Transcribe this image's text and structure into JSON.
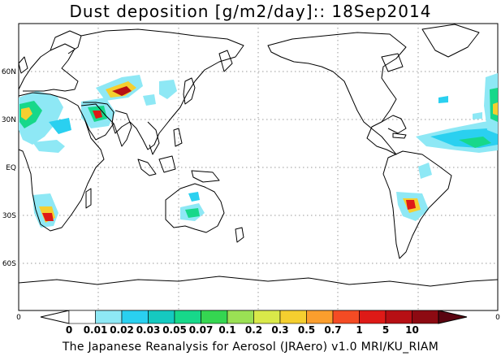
{
  "title": "Dust deposition [g/m2/day]:: 18Sep2014",
  "map": {
    "lat_labels": [
      "60N",
      "30N",
      "EQ",
      "30S",
      "60S"
    ],
    "lon_range": [
      0,
      360
    ],
    "lat_range": [
      -90,
      90
    ],
    "grid": "dotted",
    "edge_labels": {
      "left": "0",
      "right": "0"
    }
  },
  "legend": {
    "colors": [
      "#ffffff",
      "#ffffff",
      "#8ee8f5",
      "#2ad0f0",
      "#15c9c0",
      "#17d88a",
      "#35d651",
      "#9ae054",
      "#d9e949",
      "#f5cf2f",
      "#fb9e2d",
      "#f44b24",
      "#de1a17",
      "#b70f14",
      "#8d0a12",
      "#5a0410"
    ],
    "labels": [
      "0",
      "0.01",
      "0.02",
      "0.03",
      "0.05",
      "0.07",
      "0.1",
      "0.2",
      "0.3",
      "0.5",
      "0.7",
      "1",
      "5",
      "10"
    ]
  },
  "footer": "The Japanese Reanalysis for Aerosol (JRAero) v1.0 MRI/KU_RIAM"
}
